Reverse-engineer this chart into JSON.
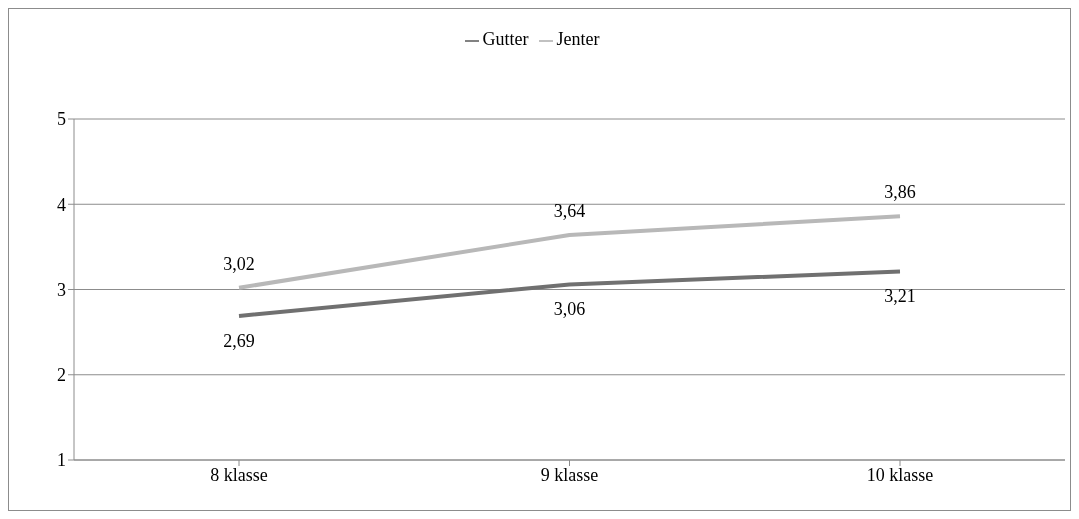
{
  "chart_data": {
    "type": "line",
    "categories": [
      "8 klasse",
      "9 klasse",
      "10 klasse"
    ],
    "series": [
      {
        "name": "Gutter",
        "color": "#707070",
        "values": [
          2.69,
          3.06,
          3.21
        ],
        "value_labels": [
          "2,69",
          "3,06",
          "3,21"
        ]
      },
      {
        "name": "Jenter",
        "color": "#b8b8b8",
        "values": [
          3.02,
          3.64,
          3.86
        ],
        "value_labels": [
          "3,02",
          "3,64",
          "3,86"
        ]
      }
    ],
    "ylim": [
      1,
      5
    ],
    "yticks": [
      1,
      2,
      3,
      4,
      5
    ],
    "grid": "y",
    "legend": "top",
    "marker": "none",
    "line_style": "solid"
  }
}
